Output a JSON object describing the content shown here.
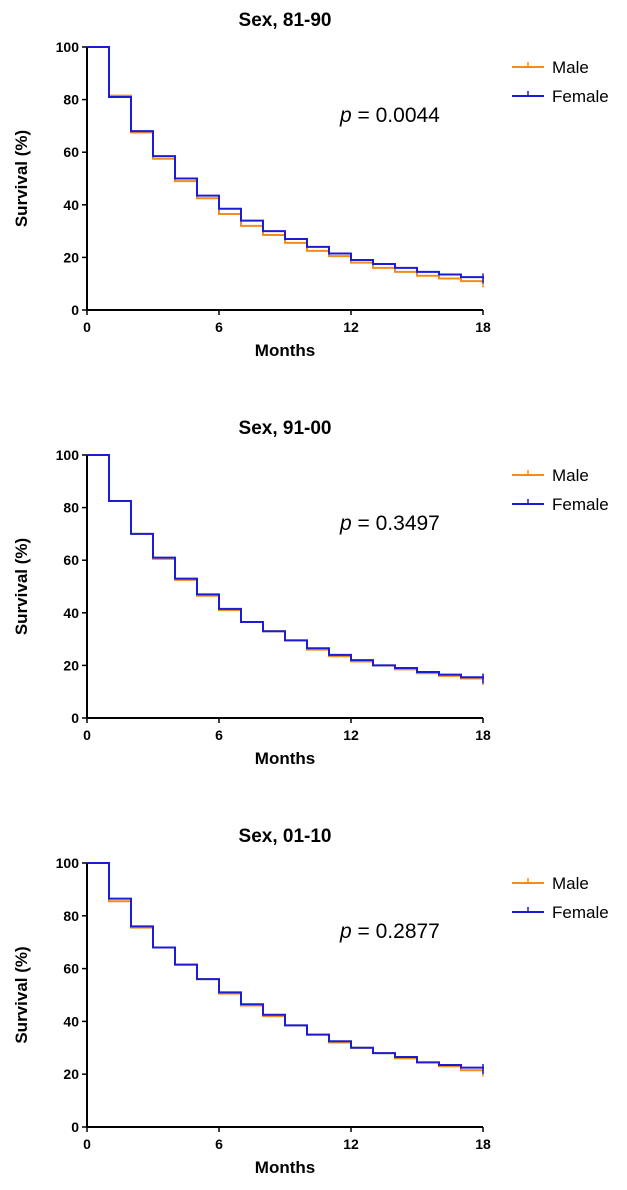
{
  "chart_data": [
    {
      "type": "line",
      "title": "Sex, 81-90",
      "xlabel": "Months",
      "ylabel": "Survival (%)",
      "xlim": [
        0,
        18
      ],
      "ylim": [
        0,
        100
      ],
      "xticks": [
        "0",
        "6",
        "12",
        "18"
      ],
      "yticks": [
        "0",
        "20",
        "40",
        "60",
        "80",
        "100"
      ],
      "legend_position": "top-right",
      "annotation": {
        "p_symbol": "p",
        "text": " = 0.0044"
      },
      "x": [
        0,
        1,
        2,
        3,
        4,
        5,
        6,
        7,
        8,
        9,
        10,
        11,
        12,
        13,
        14,
        15,
        16,
        17,
        18
      ],
      "series": [
        {
          "name": "Male",
          "color": "#f28c1e",
          "values": [
            100,
            81.5,
            67.5,
            57.5,
            49,
            42.5,
            36.5,
            32,
            28.5,
            25.5,
            22.5,
            20.5,
            18,
            16,
            14.5,
            13,
            12,
            11,
            10.5
          ]
        },
        {
          "name": "Female",
          "color": "#1c1cd2",
          "values": [
            100,
            81,
            68,
            58.5,
            50,
            43.5,
            38.5,
            34,
            30,
            27,
            24,
            21.5,
            19,
            17.5,
            16,
            14.5,
            13.5,
            12.5,
            12
          ]
        }
      ]
    },
    {
      "type": "line",
      "title": "Sex, 91-00",
      "xlabel": "Months",
      "ylabel": "Survival (%)",
      "xlim": [
        0,
        18
      ],
      "ylim": [
        0,
        100
      ],
      "xticks": [
        "0",
        "6",
        "12",
        "18"
      ],
      "yticks": [
        "0",
        "20",
        "40",
        "60",
        "80",
        "100"
      ],
      "legend_position": "top-right",
      "annotation": {
        "p_symbol": "p",
        "text": " = 0.3497"
      },
      "x": [
        0,
        1,
        2,
        3,
        4,
        5,
        6,
        7,
        8,
        9,
        10,
        11,
        12,
        13,
        14,
        15,
        16,
        17,
        18
      ],
      "series": [
        {
          "name": "Male",
          "color": "#f28c1e",
          "values": [
            100,
            82.5,
            70,
            60.5,
            52.5,
            46.5,
            41,
            36.5,
            33,
            29.5,
            26,
            23.5,
            21.5,
            20,
            18.5,
            17,
            16,
            15,
            14.5
          ]
        },
        {
          "name": "Female",
          "color": "#1c1cd2",
          "values": [
            100,
            82.5,
            70,
            61,
            53,
            47,
            41.5,
            36.5,
            33,
            29.5,
            26.5,
            24,
            22,
            20,
            19,
            17.5,
            16.5,
            15.5,
            15
          ]
        }
      ]
    },
    {
      "type": "line",
      "title": "Sex, 01-10",
      "xlabel": "Months",
      "ylabel": "Survival (%)",
      "xlim": [
        0,
        18
      ],
      "ylim": [
        0,
        100
      ],
      "xticks": [
        "0",
        "6",
        "12",
        "18"
      ],
      "yticks": [
        "0",
        "20",
        "40",
        "60",
        "80",
        "100"
      ],
      "legend_position": "top-right",
      "annotation": {
        "p_symbol": "p",
        "text": " = 0.2877"
      },
      "x": [
        0,
        1,
        2,
        3,
        4,
        5,
        6,
        7,
        8,
        9,
        10,
        11,
        12,
        13,
        14,
        15,
        16,
        17,
        18
      ],
      "series": [
        {
          "name": "Male",
          "color": "#f28c1e",
          "values": [
            100,
            85.5,
            75.5,
            68,
            61.5,
            56,
            50.5,
            46,
            42,
            38.5,
            35,
            32,
            30,
            28,
            26,
            24.5,
            23,
            21.5,
            21
          ]
        },
        {
          "name": "Female",
          "color": "#1c1cd2",
          "values": [
            100,
            86.5,
            76,
            68,
            61.5,
            56,
            51,
            46.5,
            42.5,
            38.5,
            35,
            32.5,
            30,
            28,
            26.5,
            24.5,
            23.5,
            22.5,
            22
          ]
        }
      ]
    }
  ]
}
